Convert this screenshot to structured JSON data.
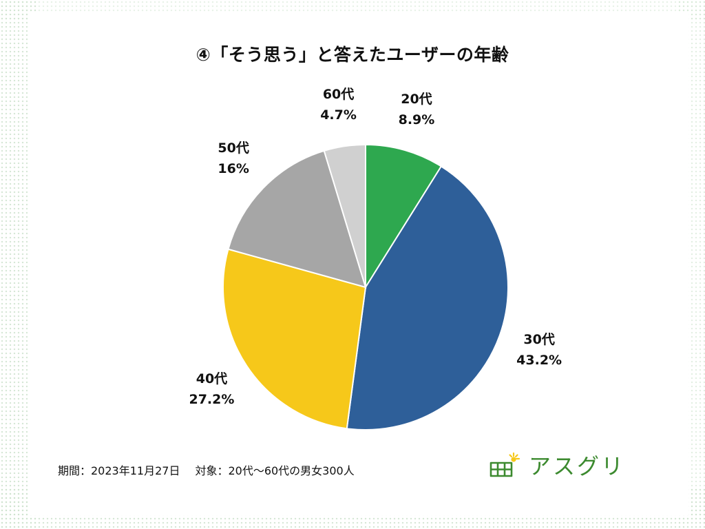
{
  "chart_data": {
    "type": "pie",
    "title": "④「そう思う」と答えたユーザーの年齢",
    "slices": [
      {
        "label": "20代",
        "value": 8.9,
        "value_label": "8.9%",
        "color": "#2ea84f"
      },
      {
        "label": "30代",
        "value": 43.2,
        "value_label": "43.2%",
        "color": "#2e5f99"
      },
      {
        "label": "40代",
        "value": 27.2,
        "value_label": "27.2%",
        "color": "#f6c81a"
      },
      {
        "label": "50代",
        "value": 16,
        "value_label": "16%",
        "color": "#a6a6a6"
      },
      {
        "label": "60代",
        "value": 4.7,
        "value_label": "4.7%",
        "color": "#d0d0d0"
      }
    ],
    "start": "12 o'clock",
    "direction": "clockwise",
    "legend": "none"
  },
  "footer": {
    "period": "期間：2023年11月27日",
    "target": "対象：20代〜60代の男女300人"
  },
  "logo": {
    "text": "アスグリ",
    "icon": "solar-panel-sun-icon",
    "color": "#3c8a2f"
  }
}
